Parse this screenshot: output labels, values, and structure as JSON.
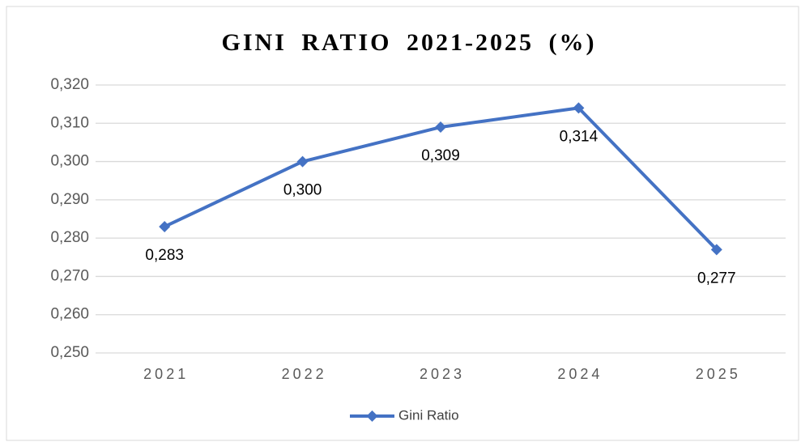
{
  "chart_data": {
    "type": "line",
    "title": "GINI RATIO 2021-2025 (%)",
    "categories": [
      "2021",
      "2022",
      "2023",
      "2024",
      "2025"
    ],
    "series": [
      {
        "name": "Gini Ratio",
        "color": "#4472c4",
        "values": [
          0.283,
          0.3,
          0.309,
          0.314,
          0.277
        ],
        "value_labels": [
          "0,283",
          "0,300",
          "0,309",
          "0,314",
          "0,277"
        ]
      }
    ],
    "ylim": [
      0.25,
      0.32
    ],
    "yticks": [
      {
        "value": 0.25,
        "label": "0,250"
      },
      {
        "value": 0.26,
        "label": "0,260"
      },
      {
        "value": 0.27,
        "label": "0,270"
      },
      {
        "value": 0.28,
        "label": "0,280"
      },
      {
        "value": 0.29,
        "label": "0,290"
      },
      {
        "value": 0.3,
        "label": "0,300"
      },
      {
        "value": 0.31,
        "label": "0,310"
      },
      {
        "value": 0.32,
        "label": "0,320"
      }
    ],
    "grid": true,
    "legend": "bottom"
  }
}
